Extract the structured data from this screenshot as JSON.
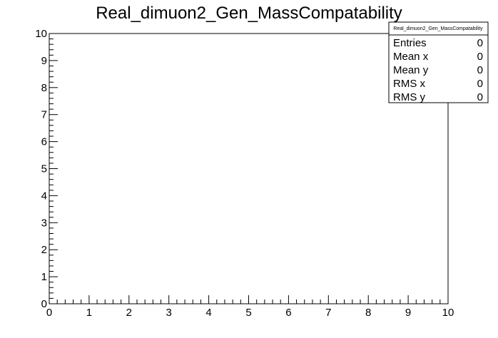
{
  "chart_data": {
    "type": "heatmap",
    "title": "Real_dimuon2_Gen_MassCompatability",
    "xlabel": "",
    "ylabel": "",
    "xlim": [
      0,
      10
    ],
    "ylim": [
      0,
      10
    ],
    "x_ticks": [
      "0",
      "1",
      "2",
      "3",
      "4",
      "5",
      "6",
      "7",
      "8",
      "9",
      "10"
    ],
    "y_ticks": [
      "0",
      "1",
      "2",
      "3",
      "4",
      "5",
      "6",
      "7",
      "8",
      "9",
      "10"
    ],
    "grid": false,
    "values": [],
    "stats_box": {
      "title": "Real_dimuon2_Gen_MassCompatability",
      "placement": "top-right",
      "rows": [
        {
          "label": "Entries",
          "value": "0"
        },
        {
          "label": "Mean x",
          "value": "0"
        },
        {
          "label": "Mean y",
          "value": "0"
        },
        {
          "label": "RMS x",
          "value": "0"
        },
        {
          "label": "RMS y",
          "value": "0"
        }
      ]
    }
  }
}
